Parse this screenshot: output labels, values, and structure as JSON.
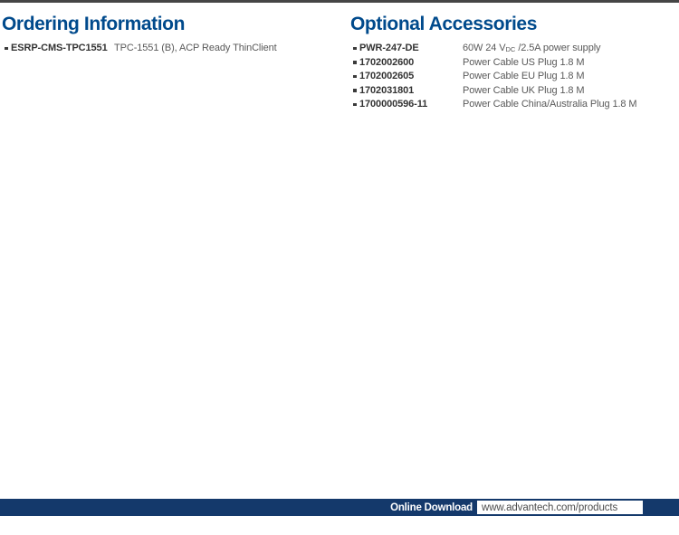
{
  "colors": {
    "heading_blue": "#004a8c",
    "footer_navy": "#14396b",
    "top_rule_gray": "#454545",
    "part_text": "#333333",
    "desc_text": "#595959"
  },
  "ordering": {
    "heading": "Ordering Information",
    "items": [
      {
        "part": "ESRP-CMS-TPC1551",
        "desc": "TPC-1551 (B), ACP Ready ThinClient"
      }
    ]
  },
  "accessories": {
    "heading": "Optional Accessories",
    "items": [
      {
        "part": "PWR-247-DE",
        "desc_pre": "60W 24 V",
        "desc_sub": "DC",
        "desc_post": " /2.5A power supply"
      },
      {
        "part": "1702002600",
        "desc": "Power Cable US Plug 1.8 M"
      },
      {
        "part": "1702002605",
        "desc": "Power Cable EU Plug 1.8 M"
      },
      {
        "part": "1702031801",
        "desc": "Power Cable UK Plug 1.8 M"
      },
      {
        "part": "1700000596-11",
        "desc": "Power Cable China/Australia Plug 1.8 M"
      }
    ]
  },
  "footer": {
    "label": "Online Download",
    "url": "www.advantech.com/products"
  }
}
